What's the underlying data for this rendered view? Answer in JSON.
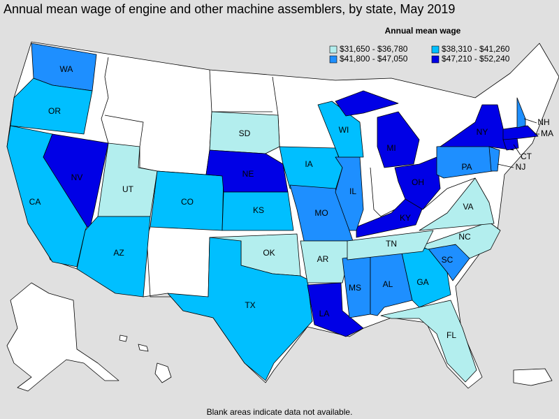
{
  "header": {
    "title": "Annual mean wage of engine and other machine assemblers, by state, May 2019"
  },
  "legend": {
    "title": "Annual mean wage",
    "items": [
      {
        "label": "$31,650 - $36,780",
        "color": "#b3eeee"
      },
      {
        "label": "$38,310 - $41,260",
        "color": "#00bfff"
      },
      {
        "label": "$41,800 - $47,050",
        "color": "#1e8fff"
      },
      {
        "label": "$47,210 - $52,240",
        "color": "#0000e6"
      }
    ]
  },
  "states": [
    {
      "abbr": "WA",
      "color": "#1e8fff"
    },
    {
      "abbr": "OR",
      "color": "#00bfff"
    },
    {
      "abbr": "CA",
      "color": "#00bfff"
    },
    {
      "abbr": "NV",
      "color": "#0000e6"
    },
    {
      "abbr": "UT",
      "color": "#b3eeee"
    },
    {
      "abbr": "AZ",
      "color": "#00bfff"
    },
    {
      "abbr": "CO",
      "color": "#00bfff"
    },
    {
      "abbr": "SD",
      "color": "#b3eeee"
    },
    {
      "abbr": "NE",
      "color": "#0000e6"
    },
    {
      "abbr": "KS",
      "color": "#00bfff"
    },
    {
      "abbr": "OK",
      "color": "#b3eeee"
    },
    {
      "abbr": "TX",
      "color": "#00bfff"
    },
    {
      "abbr": "IA",
      "color": "#00bfff"
    },
    {
      "abbr": "MO",
      "color": "#1e8fff"
    },
    {
      "abbr": "AR",
      "color": "#b3eeee"
    },
    {
      "abbr": "LA",
      "color": "#0000e6"
    },
    {
      "abbr": "MS",
      "color": "#1e8fff"
    },
    {
      "abbr": "AL",
      "color": "#1e8fff"
    },
    {
      "abbr": "GA",
      "color": "#00bfff"
    },
    {
      "abbr": "FL",
      "color": "#b3eeee"
    },
    {
      "abbr": "SC",
      "color": "#1e8fff"
    },
    {
      "abbr": "NC",
      "color": "#b3eeee"
    },
    {
      "abbr": "TN",
      "color": "#b3eeee"
    },
    {
      "abbr": "KY",
      "color": "#0000e6"
    },
    {
      "abbr": "VA",
      "color": "#b3eeee"
    },
    {
      "abbr": "OH",
      "color": "#0000e6"
    },
    {
      "abbr": "IL",
      "color": "#1e8fff"
    },
    {
      "abbr": "WI",
      "color": "#00bfff"
    },
    {
      "abbr": "MI",
      "color": "#0000e6"
    },
    {
      "abbr": "PA",
      "color": "#1e8fff"
    },
    {
      "abbr": "NY",
      "color": "#0000e6"
    },
    {
      "abbr": "NJ",
      "color": "#1e8fff"
    },
    {
      "abbr": "CT",
      "color": "#0000e6"
    },
    {
      "abbr": "MA",
      "color": "#0000e6"
    },
    {
      "abbr": "NH",
      "color": "#1e8fff"
    }
  ],
  "footer": {
    "note": "Blank areas indicate data not available."
  }
}
